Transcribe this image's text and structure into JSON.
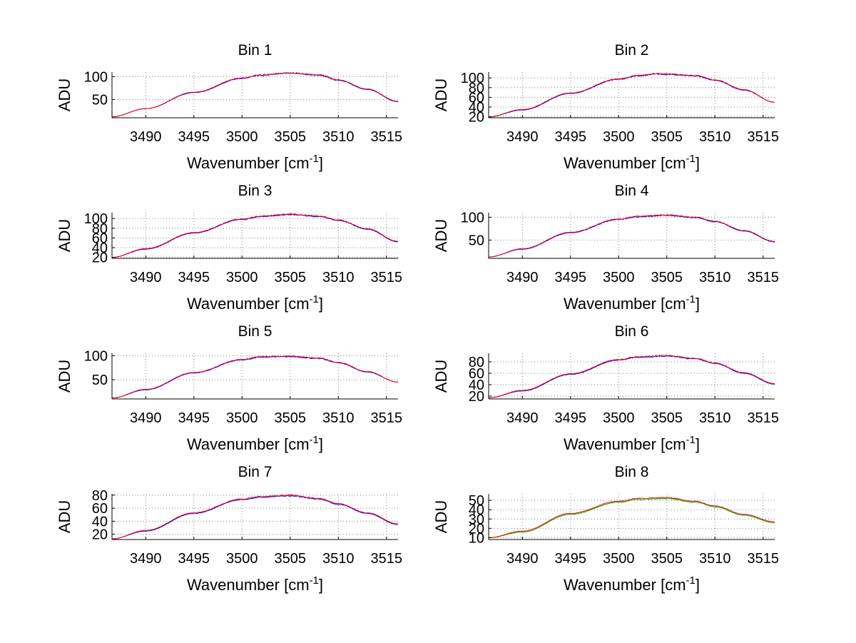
{
  "colors": {
    "series_red": "#ff0000",
    "series_blue": "#0000ff",
    "series_green": "#00aa00",
    "axis": "#000000",
    "grid": "#808080"
  },
  "chart_data": [
    {
      "type": "line",
      "title": "Bin 1",
      "xlabel": "Wavenumber [cm",
      "xlabel_sup": "-1",
      "xlabel_end": "]",
      "ylabel": "ADU",
      "xlim": [
        3486.5,
        3516.2
      ],
      "ylim": [
        10,
        110
      ],
      "xticks": [
        3490,
        3495,
        3500,
        3505,
        3510,
        3515
      ],
      "yticks": [
        50,
        100
      ],
      "grid": true,
      "series": [
        {
          "color": "blue",
          "x": [
            3486.5,
            3490,
            3495,
            3500,
            3502,
            3505,
            3508,
            3510,
            3513,
            3516.2
          ],
          "y": [
            12,
            30,
            65,
            96,
            103,
            108,
            103,
            92,
            72,
            45
          ]
        },
        {
          "color": "red",
          "x": [
            3486.5,
            3490,
            3495,
            3500,
            3502,
            3505,
            3508,
            3510,
            3513,
            3516.2
          ],
          "y": [
            12,
            30,
            66,
            97,
            104,
            108,
            104,
            93,
            73,
            46
          ]
        }
      ]
    },
    {
      "type": "line",
      "title": "Bin 2",
      "xlabel": "Wavenumber [cm",
      "xlabel_sup": "-1",
      "xlabel_end": "]",
      "ylabel": "ADU",
      "xlim": [
        3486.5,
        3516.2
      ],
      "ylim": [
        18,
        112
      ],
      "xticks": [
        3490,
        3495,
        3500,
        3505,
        3510,
        3515
      ],
      "yticks": [
        20,
        40,
        60,
        80,
        100
      ],
      "grid": true,
      "series": [
        {
          "color": "blue",
          "x": [
            3486.5,
            3490,
            3495,
            3500,
            3502,
            3504,
            3505,
            3508,
            3510,
            3513,
            3516.2
          ],
          "y": [
            20,
            34,
            68,
            97,
            104,
            108,
            107,
            104,
            95,
            75,
            50
          ]
        },
        {
          "color": "red",
          "x": [
            3486.5,
            3490,
            3495,
            3500,
            3502,
            3504,
            3505,
            3508,
            3510,
            3513,
            3516.2
          ],
          "y": [
            20,
            35,
            69,
            98,
            105,
            109,
            108,
            105,
            96,
            76,
            50
          ]
        }
      ]
    },
    {
      "type": "line",
      "title": "Bin 3",
      "xlabel": "Wavenumber [cm",
      "xlabel_sup": "-1",
      "xlabel_end": "]",
      "ylabel": "ADU",
      "xlim": [
        3486.5,
        3516.2
      ],
      "ylim": [
        18,
        112
      ],
      "xticks": [
        3490,
        3495,
        3500,
        3505,
        3510,
        3515
      ],
      "yticks": [
        20,
        40,
        60,
        80,
        100
      ],
      "grid": true,
      "series": [
        {
          "color": "blue",
          "x": [
            3486.5,
            3490,
            3495,
            3500,
            3502,
            3505,
            3508,
            3510,
            3513,
            3516.2
          ],
          "y": [
            20,
            37,
            70,
            98,
            104,
            108,
            104,
            96,
            78,
            52
          ]
        },
        {
          "color": "red",
          "x": [
            3486.5,
            3490,
            3495,
            3500,
            3502,
            3505,
            3508,
            3510,
            3513,
            3516.2
          ],
          "y": [
            20,
            38,
            71,
            99,
            105,
            109,
            105,
            97,
            79,
            53
          ]
        }
      ]
    },
    {
      "type": "line",
      "title": "Bin 4",
      "xlabel": "Wavenumber [cm",
      "xlabel_sup": "-1",
      "xlabel_end": "]",
      "ylabel": "ADU",
      "xlim": [
        3486.5,
        3516.2
      ],
      "ylim": [
        10,
        110
      ],
      "xticks": [
        3490,
        3495,
        3500,
        3505,
        3510,
        3515
      ],
      "yticks": [
        50,
        100
      ],
      "grid": true,
      "series": [
        {
          "color": "blue",
          "x": [
            3486.5,
            3490,
            3495,
            3500,
            3502,
            3505,
            3508,
            3510,
            3513,
            3516.2
          ],
          "y": [
            13,
            30,
            66,
            95,
            101,
            104,
            99,
            90,
            70,
            46
          ]
        },
        {
          "color": "red",
          "x": [
            3486.5,
            3490,
            3495,
            3500,
            3502,
            3505,
            3508,
            3510,
            3513,
            3516.2
          ],
          "y": [
            13,
            31,
            67,
            96,
            102,
            105,
            100,
            91,
            71,
            47
          ]
        }
      ]
    },
    {
      "type": "line",
      "title": "Bin 5",
      "xlabel": "Wavenumber [cm",
      "xlabel_sup": "-1",
      "xlabel_end": "]",
      "ylabel": "ADU",
      "xlim": [
        3486.5,
        3516.2
      ],
      "ylim": [
        10,
        105
      ],
      "xticks": [
        3490,
        3495,
        3500,
        3505,
        3510,
        3515
      ],
      "yticks": [
        50,
        100
      ],
      "grid": true,
      "series": [
        {
          "color": "blue",
          "x": [
            3486.5,
            3490,
            3495,
            3500,
            3502,
            3505,
            3508,
            3510,
            3513,
            3516.2
          ],
          "y": [
            12,
            29,
            64,
            91,
            97,
            98,
            94,
            85,
            66,
            45
          ]
        },
        {
          "color": "red",
          "x": [
            3486.5,
            3490,
            3495,
            3500,
            3502,
            3505,
            3508,
            3510,
            3513,
            3516.2
          ],
          "y": [
            12,
            30,
            65,
            92,
            98,
            99,
            95,
            86,
            67,
            45
          ]
        }
      ]
    },
    {
      "type": "line",
      "title": "Bin 6",
      "xlabel": "Wavenumber [cm",
      "xlabel_sup": "-1",
      "xlabel_end": "]",
      "ylabel": "ADU",
      "xlim": [
        3486.5,
        3516.2
      ],
      "ylim": [
        15,
        95
      ],
      "xticks": [
        3490,
        3495,
        3500,
        3505,
        3510,
        3515
      ],
      "yticks": [
        20,
        40,
        60,
        80
      ],
      "grid": true,
      "series": [
        {
          "color": "blue",
          "x": [
            3486.5,
            3490,
            3495,
            3500,
            3502,
            3505,
            3508,
            3510,
            3513,
            3516.2
          ],
          "y": [
            17,
            29,
            58,
            83,
            88,
            90,
            85,
            77,
            60,
            41
          ]
        },
        {
          "color": "red",
          "x": [
            3486.5,
            3490,
            3495,
            3500,
            3502,
            3505,
            3508,
            3510,
            3513,
            3516.2
          ],
          "y": [
            17,
            30,
            59,
            84,
            89,
            91,
            86,
            78,
            61,
            42
          ]
        }
      ]
    },
    {
      "type": "line",
      "title": "Bin 7",
      "xlabel": "Wavenumber [cm",
      "xlabel_sup": "-1",
      "xlabel_end": "]",
      "ylabel": "ADU",
      "xlim": [
        3486.5,
        3516.2
      ],
      "ylim": [
        12,
        82
      ],
      "xticks": [
        3490,
        3495,
        3500,
        3505,
        3510,
        3515
      ],
      "yticks": [
        20,
        40,
        60,
        80
      ],
      "grid": true,
      "series": [
        {
          "color": "blue",
          "x": [
            3486.5,
            3490,
            3495,
            3500,
            3502,
            3505,
            3508,
            3510,
            3513,
            3516.2
          ],
          "y": [
            13,
            25,
            52,
            73,
            77,
            79,
            74,
            66,
            52,
            35
          ]
        },
        {
          "color": "red",
          "x": [
            3486.5,
            3490,
            3495,
            3500,
            3502,
            3505,
            3508,
            3510,
            3513,
            3516.2
          ],
          "y": [
            13,
            26,
            53,
            74,
            78,
            80,
            75,
            67,
            53,
            36
          ]
        }
      ]
    },
    {
      "type": "line",
      "title": "Bin 8",
      "xlabel": "Wavenumber [cm",
      "xlabel_sup": "-1",
      "xlabel_end": "]",
      "ylabel": "ADU",
      "xlim": [
        3486.5,
        3516.2
      ],
      "ylim": [
        8,
        57
      ],
      "xticks": [
        3490,
        3495,
        3500,
        3505,
        3510,
        3515
      ],
      "yticks": [
        10,
        20,
        30,
        40,
        50
      ],
      "grid": true,
      "series": [
        {
          "color": "green",
          "x": [
            3486.5,
            3490,
            3495,
            3500,
            3502,
            3505,
            3508,
            3510,
            3513,
            3516.2
          ],
          "y": [
            10,
            16,
            35,
            48,
            51,
            52,
            48,
            43,
            34,
            26
          ]
        },
        {
          "color": "red",
          "x": [
            3486.5,
            3490,
            3495,
            3500,
            3502,
            3505,
            3508,
            3510,
            3513,
            3516.2
          ],
          "y": [
            10,
            17,
            36,
            49,
            52,
            53,
            49,
            44,
            35,
            27
          ]
        }
      ]
    }
  ]
}
